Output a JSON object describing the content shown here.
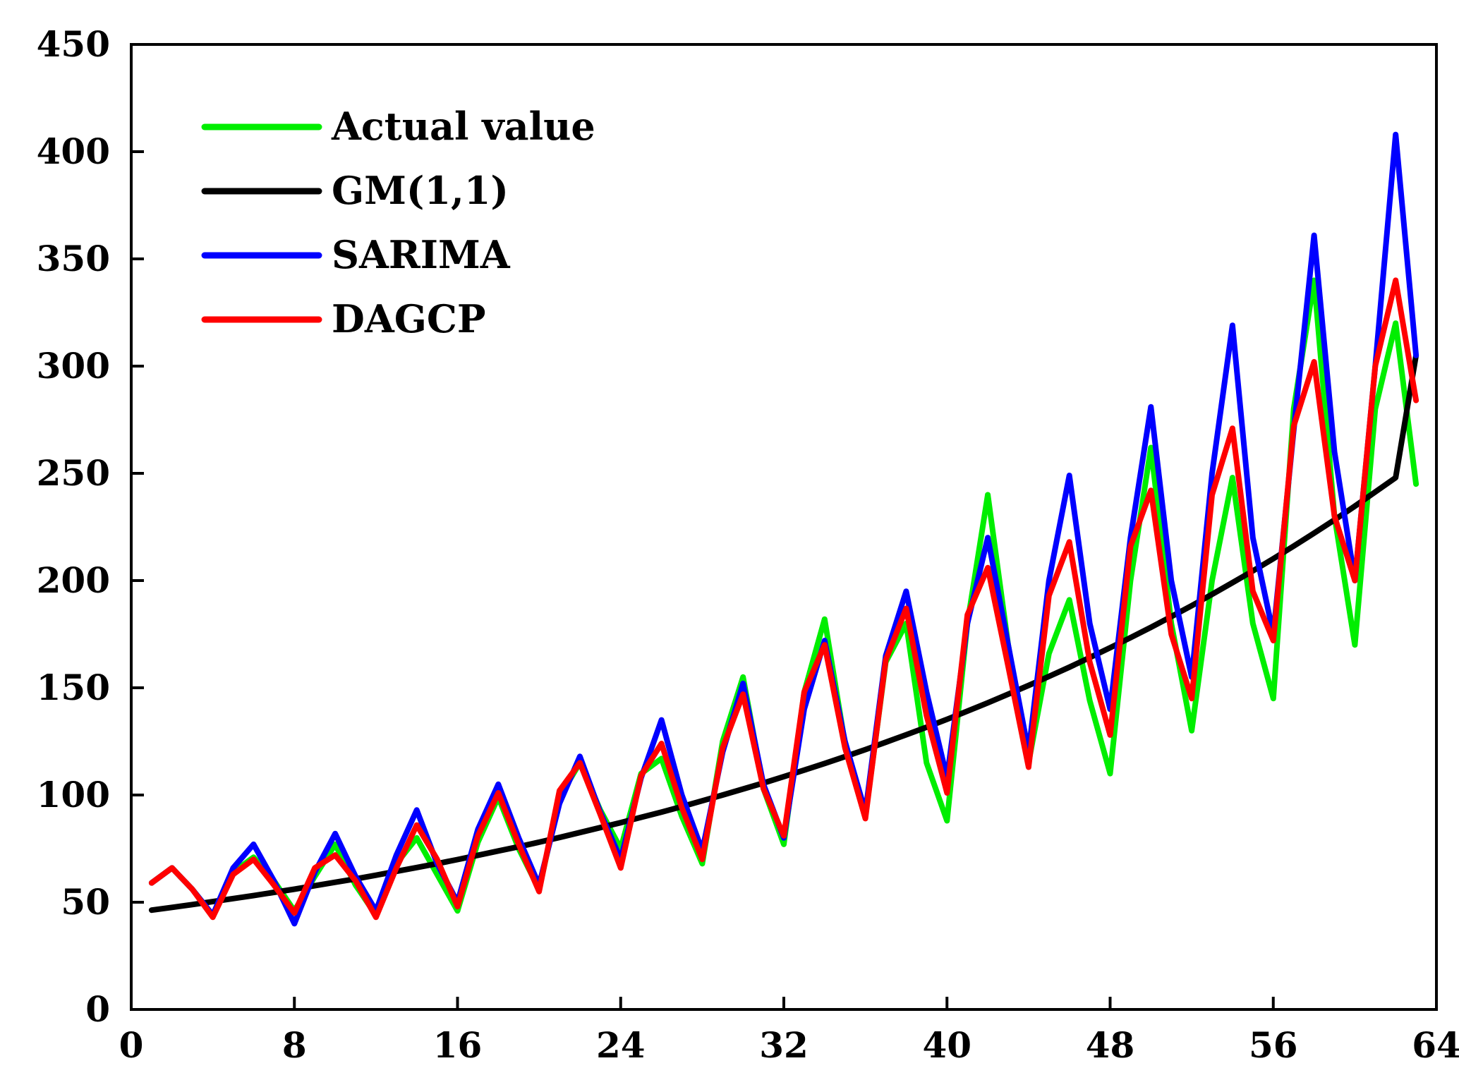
{
  "chart_data": {
    "type": "line",
    "title": "",
    "xlabel": "",
    "ylabel": "",
    "xlim": [
      0,
      64
    ],
    "ylim": [
      0,
      450
    ],
    "x_ticks": [
      "0",
      "8",
      "16",
      "24",
      "32",
      "40",
      "48",
      "56",
      "64"
    ],
    "y_ticks": [
      "0",
      "50",
      "100",
      "150",
      "200",
      "250",
      "300",
      "350",
      "400",
      "450"
    ],
    "grid": false,
    "legend_position": "top-left",
    "x": [
      1,
      2,
      3,
      4,
      5,
      6,
      7,
      8,
      9,
      10,
      11,
      12,
      13,
      14,
      15,
      16,
      17,
      18,
      19,
      20,
      21,
      22,
      23,
      24,
      25,
      26,
      27,
      28,
      29,
      30,
      31,
      32,
      33,
      34,
      35,
      36,
      37,
      38,
      39,
      40,
      41,
      42,
      43,
      44,
      45,
      46,
      47,
      48,
      49,
      50,
      51,
      52,
      53,
      54,
      55,
      56,
      57,
      58,
      59,
      60,
      61,
      62,
      63
    ],
    "series": [
      {
        "name": "Actual value",
        "color": "#00ee00",
        "values": [
          59,
          66,
          56,
          44,
          64,
          71,
          60,
          46,
          62,
          77,
          58,
          44,
          68,
          80,
          63,
          46,
          78,
          99,
          75,
          56,
          99,
          115,
          93,
          75,
          110,
          117,
          90,
          68,
          125,
          155,
          103,
          77,
          148,
          182,
          124,
          90,
          162,
          180,
          115,
          88,
          180,
          240,
          170,
          115,
          166,
          191,
          144,
          110,
          200,
          262,
          180,
          130,
          200,
          248,
          180,
          145,
          280,
          340,
          230,
          170,
          280,
          320,
          245
        ],
        "z": 1
      },
      {
        "name": "GM(1,1)",
        "color": "#000000",
        "values": [
          46.3,
          47.6,
          48.9,
          50.3,
          51.7,
          53.1,
          54.6,
          56.1,
          57.7,
          59.3,
          60.9,
          62.6,
          64.4,
          66.2,
          68.0,
          69.9,
          71.9,
          73.9,
          75.9,
          78.0,
          80.2,
          82.5,
          84.8,
          87.1,
          89.6,
          92.0,
          94.6,
          97.3,
          100.0,
          102.8,
          105.6,
          108.6,
          111.6,
          114.7,
          117.9,
          121.2,
          124.6,
          128.1,
          131.6,
          135.3,
          139.1,
          143.0,
          147.0,
          151.1,
          155.3,
          159.6,
          164.1,
          168.7,
          173.4,
          178.2,
          183.2,
          188.3,
          193.6,
          199.0,
          204.5,
          210.2,
          216.1,
          222.1,
          228.3,
          234.7,
          241.3,
          248.0,
          305.0
        ],
        "z": 2
      },
      {
        "name": "SARIMA",
        "color": "#0000ff",
        "values": [
          59,
          66,
          56,
          44,
          66,
          77,
          60,
          40,
          64,
          82,
          62,
          46,
          72,
          93,
          68,
          50,
          84,
          105,
          80,
          58,
          96,
          118,
          92,
          70,
          108,
          135,
          100,
          74,
          120,
          152,
          105,
          80,
          140,
          172,
          125,
          92,
          165,
          195,
          148,
          108,
          180,
          220,
          170,
          120,
          200,
          249,
          180,
          140,
          220,
          281,
          200,
          155,
          250,
          319,
          220,
          175,
          270,
          361,
          260,
          200,
          300,
          408,
          305
        ],
        "z": 3
      },
      {
        "name": "DAGCP",
        "color": "#ff0000",
        "values": [
          59,
          66,
          56,
          43,
          63,
          70,
          58,
          45,
          66,
          72,
          60,
          43,
          66,
          86,
          70,
          48,
          81,
          101,
          77,
          55,
          102,
          115,
          91,
          66,
          109,
          124,
          94,
          70,
          122,
          147,
          103,
          81,
          148,
          170,
          122,
          89,
          163,
          187,
          137,
          101,
          184,
          206,
          160,
          113,
          193,
          218,
          162,
          128,
          216,
          242,
          175,
          145,
          240,
          271,
          195,
          172,
          272,
          302,
          230,
          200,
          300,
          340,
          284
        ],
        "z": 4
      }
    ]
  }
}
